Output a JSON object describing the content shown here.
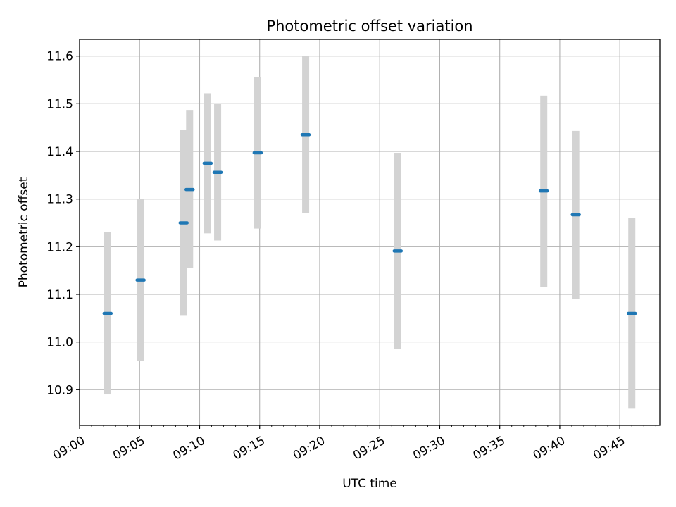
{
  "chart_data": {
    "type": "scatter",
    "title": "Photometric offset variation",
    "xlabel": "UTC time",
    "ylabel": "Photometric offset",
    "x_axis_type": "time",
    "xlim": [
      "09:00",
      "09:48:20"
    ],
    "ylim": [
      10.825,
      11.635
    ],
    "x_ticks": [
      "09:00",
      "09:05",
      "09:10",
      "09:15",
      "09:20",
      "09:25",
      "09:30",
      "09:35",
      "09:40",
      "09:45"
    ],
    "y_ticks": [
      10.9,
      11.0,
      11.1,
      11.2,
      11.3,
      11.4,
      11.5,
      11.6
    ],
    "y_tick_labels": [
      "10.9",
      "11.0",
      "11.1",
      "11.2",
      "11.3",
      "11.4",
      "11.5",
      "11.6"
    ],
    "grid": true,
    "marker_color": "#1f77b4",
    "errorbar_color": "#d3d3d3",
    "points": [
      {
        "time": "09:02:20",
        "value": 11.06,
        "low": 10.89,
        "high": 11.23
      },
      {
        "time": "09:05:05",
        "value": 11.13,
        "low": 10.96,
        "high": 11.3
      },
      {
        "time": "09:08:40",
        "value": 11.25,
        "low": 11.055,
        "high": 11.445
      },
      {
        "time": "09:09:10",
        "value": 11.32,
        "low": 11.155,
        "high": 11.487
      },
      {
        "time": "09:10:40",
        "value": 11.375,
        "low": 11.228,
        "high": 11.522
      },
      {
        "time": "09:11:30",
        "value": 11.356,
        "low": 11.213,
        "high": 11.5
      },
      {
        "time": "09:14:50",
        "value": 11.397,
        "low": 11.238,
        "high": 11.556
      },
      {
        "time": "09:18:50",
        "value": 11.435,
        "low": 11.27,
        "high": 11.6
      },
      {
        "time": "09:26:30",
        "value": 11.191,
        "low": 10.985,
        "high": 11.397
      },
      {
        "time": "09:38:40",
        "value": 11.317,
        "low": 11.116,
        "high": 11.517
      },
      {
        "time": "09:41:20",
        "value": 11.267,
        "low": 11.09,
        "high": 11.443
      },
      {
        "time": "09:46:00",
        "value": 11.06,
        "low": 10.86,
        "high": 11.26
      }
    ]
  }
}
